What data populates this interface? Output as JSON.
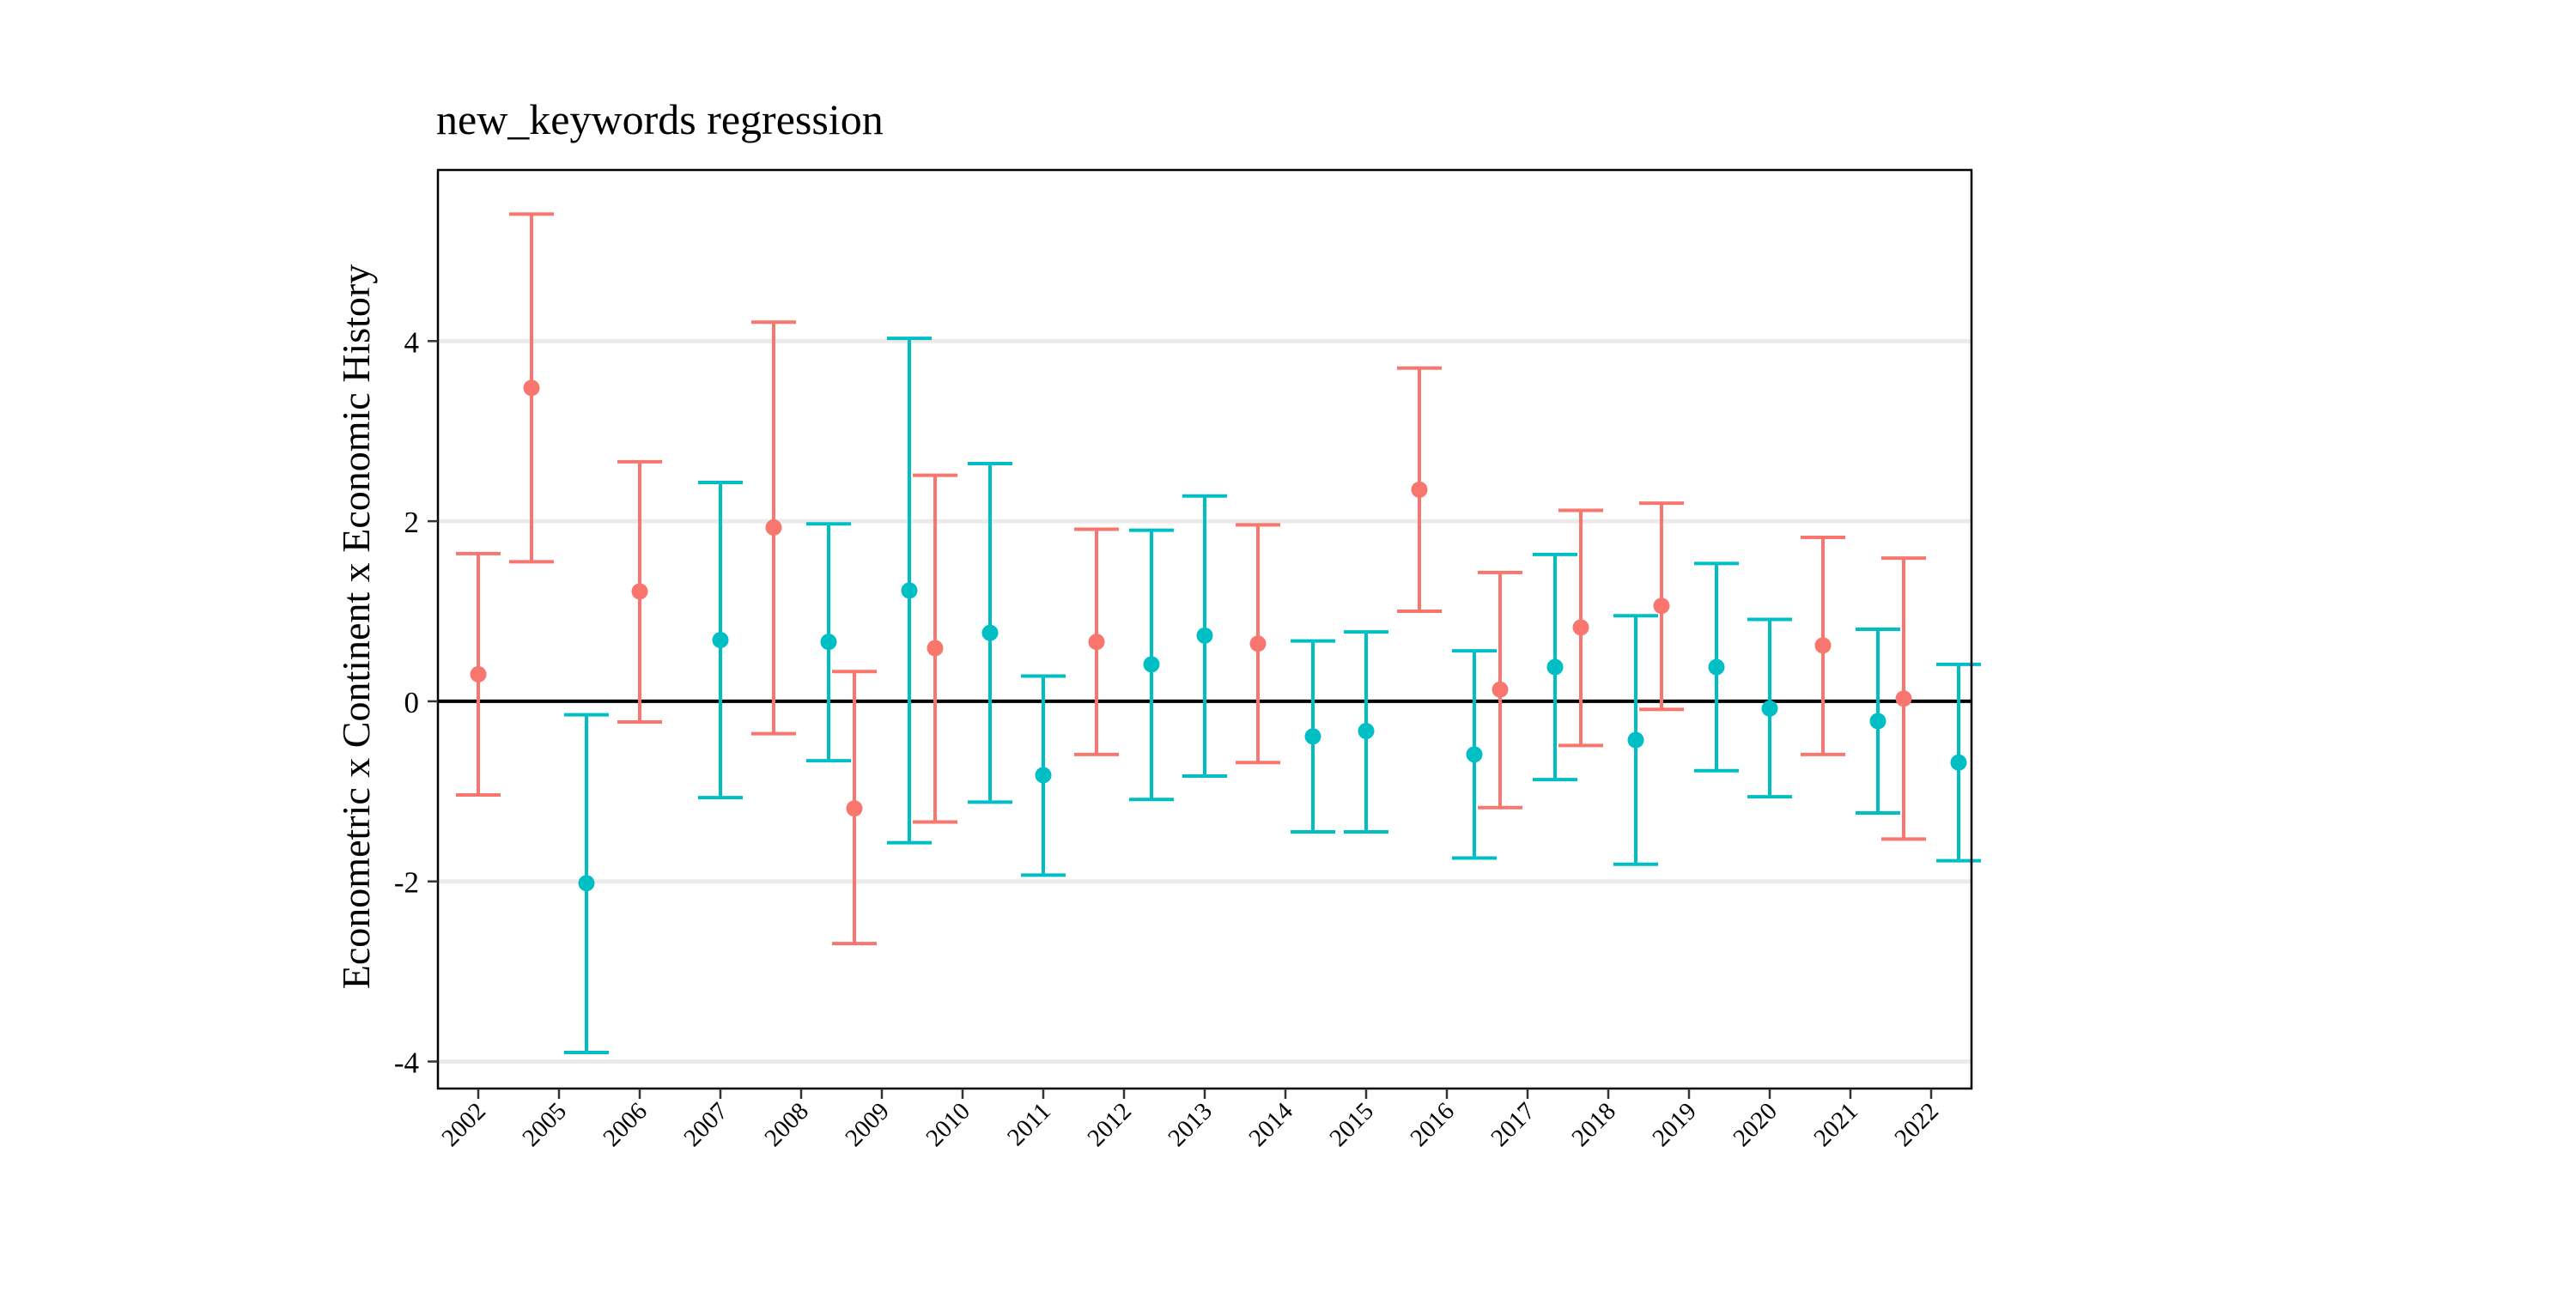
{
  "colors": {
    "series_a": "#F8766D",
    "series_b": "#00BFC4",
    "zero_line": "#000000",
    "grid": "#EBEBEB",
    "frame": "#000000"
  },
  "chart_data": {
    "type": "scatter",
    "subtype": "point-with-errorbars",
    "title": "new_keywords regression",
    "xlabel": "",
    "ylabel": "Econometric x Continent x Economic History",
    "categories": [
      "2002",
      "2005",
      "2006",
      "2007",
      "2008",
      "2009",
      "2010",
      "2011",
      "2012",
      "2013",
      "2014",
      "2015",
      "2016",
      "2017",
      "2018",
      "2019",
      "2020",
      "2021",
      "2022"
    ],
    "ylim": [
      -4.3,
      5.9
    ],
    "yticks": [
      -4,
      -2,
      0,
      2,
      4
    ],
    "ytick_labels": [
      "-4",
      "-2",
      "0",
      "2",
      "4"
    ],
    "grid": "horizontal major gridlines",
    "legend": "none",
    "reference_line": 0,
    "series": [
      {
        "color": "#F8766D",
        "points": [
          {
            "x": "2002",
            "y": 0.3,
            "lower": -1.04,
            "upper": 1.64
          },
          {
            "x": "2005",
            "y": 3.48,
            "lower": 1.55,
            "upper": 5.41
          },
          {
            "x": "2006",
            "y": 1.22,
            "lower": -0.23,
            "upper": 2.66
          },
          {
            "x": "2008",
            "y": 1.93,
            "lower": -0.36,
            "upper": 4.21
          },
          {
            "x": "2009",
            "y": -1.19,
            "lower": -2.69,
            "upper": 0.33
          },
          {
            "x": "2010",
            "y": 0.59,
            "lower": -1.34,
            "upper": 2.51
          },
          {
            "x": "2012",
            "y": 0.66,
            "lower": -0.59,
            "upper": 1.91
          },
          {
            "x": "2014",
            "y": 0.64,
            "lower": -0.68,
            "upper": 1.96
          },
          {
            "x": "2016",
            "y": 2.35,
            "lower": 1.0,
            "upper": 3.7
          },
          {
            "x": "2017",
            "y": 0.13,
            "lower": -1.18,
            "upper": 1.43
          },
          {
            "x": "2018",
            "y": 0.82,
            "lower": -0.49,
            "upper": 2.12
          },
          {
            "x": "2019",
            "y": 1.06,
            "lower": -0.09,
            "upper": 2.2
          },
          {
            "x": "2021",
            "y": 0.62,
            "lower": -0.59,
            "upper": 1.82
          },
          {
            "x": "2022",
            "y": 0.03,
            "lower": -1.53,
            "upper": 1.59
          }
        ]
      },
      {
        "color": "#00BFC4",
        "points": [
          {
            "x": "2005",
            "y": -2.02,
            "lower": -3.9,
            "upper": -0.15
          },
          {
            "x": "2007",
            "y": 0.68,
            "lower": -1.07,
            "upper": 2.43
          },
          {
            "x": "2008",
            "y": 0.66,
            "lower": -0.66,
            "upper": 1.97
          },
          {
            "x": "2009",
            "y": 1.23,
            "lower": -1.57,
            "upper": 4.03
          },
          {
            "x": "2010",
            "y": 0.76,
            "lower": -1.12,
            "upper": 2.64
          },
          {
            "x": "2011",
            "y": -0.82,
            "lower": -1.93,
            "upper": 0.28
          },
          {
            "x": "2012",
            "y": 0.41,
            "lower": -1.09,
            "upper": 1.9
          },
          {
            "x": "2013",
            "y": 0.73,
            "lower": -0.83,
            "upper": 2.28
          },
          {
            "x": "2014",
            "y": -0.39,
            "lower": -1.45,
            "upper": 0.67
          },
          {
            "x": "2015",
            "y": -0.33,
            "lower": -1.45,
            "upper": 0.77
          },
          {
            "x": "2016",
            "y": -0.59,
            "lower": -1.74,
            "upper": 0.56
          },
          {
            "x": "2017",
            "y": 0.38,
            "lower": -0.87,
            "upper": 1.63
          },
          {
            "x": "2018",
            "y": -0.43,
            "lower": -1.81,
            "upper": 0.95
          },
          {
            "x": "2019",
            "y": 0.38,
            "lower": -0.77,
            "upper": 1.53
          },
          {
            "x": "2020",
            "y": -0.08,
            "lower": -1.06,
            "upper": 0.91
          },
          {
            "x": "2021",
            "y": -0.22,
            "lower": -1.24,
            "upper": 0.8
          },
          {
            "x": "2022",
            "y": -0.68,
            "lower": -1.77,
            "upper": 0.41
          }
        ]
      }
    ]
  }
}
